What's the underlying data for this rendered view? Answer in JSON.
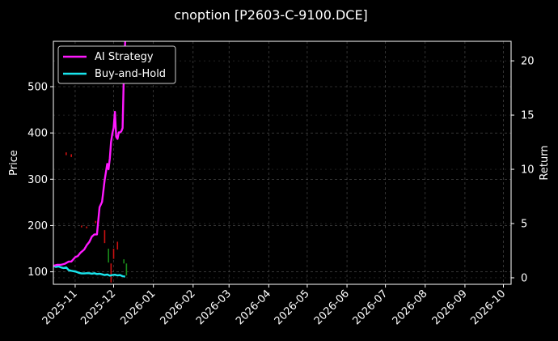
{
  "chart_data": {
    "type": "line",
    "title": "cnoption [P2603-C-9100.DCE]",
    "xlabel": "",
    "ylabel": "Price",
    "y2label": "Return",
    "x_ticks": [
      "2025-11",
      "2025-12",
      "2026-01",
      "2026-02",
      "2026-03",
      "2026-04",
      "2026-05",
      "2026-06",
      "2026-07",
      "2026-08",
      "2026-09",
      "2026-10"
    ],
    "xlim": [
      "2025-10-15",
      "2026-10-07"
    ],
    "ylim": [
      73,
      598
    ],
    "y_ticks": [
      100,
      200,
      300,
      400,
      500
    ],
    "y2lim": [
      -0.6,
      21.8
    ],
    "y2_ticks": [
      0,
      5,
      10,
      15,
      20
    ],
    "grid": true,
    "legend_position": "top-left",
    "series": [
      {
        "name": "AI Strategy",
        "axis": "right",
        "color": "#ff19ff",
        "x": [
          "2025-10-15",
          "2025-10-18",
          "2025-10-21",
          "2025-10-24",
          "2025-10-27",
          "2025-10-29",
          "2025-11-01",
          "2025-11-03",
          "2025-11-05",
          "2025-11-08",
          "2025-11-10",
          "2025-11-12",
          "2025-11-14",
          "2025-11-16",
          "2025-11-18",
          "2025-11-20",
          "2025-11-22",
          "2025-11-24",
          "2025-11-26",
          "2025-11-27",
          "2025-11-28",
          "2025-11-29",
          "2025-11-30",
          "2025-12-01",
          "2025-12-02",
          "2025-12-03",
          "2025-12-04",
          "2025-12-05",
          "2025-12-06",
          "2025-12-07",
          "2025-12-08",
          "2025-12-09",
          "2025-12-10"
        ],
        "y": [
          1.1,
          1.2,
          1.2,
          1.3,
          1.5,
          1.5,
          1.9,
          2.0,
          2.3,
          2.6,
          3.0,
          3.3,
          3.8,
          4.0,
          4.0,
          6.5,
          7.0,
          9.0,
          10.5,
          10.0,
          11.0,
          12.5,
          13.3,
          13.8,
          15.3,
          13.0,
          12.8,
          13.4,
          13.4,
          13.5,
          13.8,
          19.0,
          21.8
        ]
      },
      {
        "name": "Buy-and-Hold",
        "axis": "right",
        "color": "#19e5ed",
        "x": [
          "2025-10-15",
          "2025-10-17",
          "2025-10-19",
          "2025-10-21",
          "2025-10-23",
          "2025-10-25",
          "2025-10-27",
          "2025-10-29",
          "2025-10-31",
          "2025-11-02",
          "2025-11-04",
          "2025-11-06",
          "2025-11-08",
          "2025-11-10",
          "2025-11-12",
          "2025-11-14",
          "2025-11-16",
          "2025-11-18",
          "2025-11-20",
          "2025-11-22",
          "2025-11-24",
          "2025-11-26",
          "2025-11-28",
          "2025-11-30",
          "2025-12-02",
          "2025-12-04",
          "2025-12-06",
          "2025-12-08",
          "2025-12-10"
        ],
        "y": [
          1.1,
          1.0,
          1.05,
          0.95,
          0.9,
          0.95,
          0.7,
          0.65,
          0.6,
          0.55,
          0.45,
          0.4,
          0.4,
          0.42,
          0.42,
          0.38,
          0.42,
          0.35,
          0.38,
          0.32,
          0.25,
          0.3,
          0.2,
          0.25,
          0.28,
          0.22,
          0.25,
          0.15,
          0.1
        ]
      }
    ],
    "candles": [
      {
        "x": "2025-10-25",
        "low": 352,
        "high": 358,
        "up": false
      },
      {
        "x": "2025-10-29",
        "low": 348,
        "high": 354,
        "up": false
      },
      {
        "x": "2025-11-06",
        "low": 196,
        "high": 200,
        "up": false
      },
      {
        "x": "2025-11-10",
        "low": 194,
        "high": 198,
        "up": false
      },
      {
        "x": "2025-11-17",
        "low": 205,
        "high": 210,
        "up": false
      },
      {
        "x": "2025-11-24",
        "low": 162,
        "high": 190,
        "up": false
      },
      {
        "x": "2025-11-27",
        "low": 120,
        "high": 150,
        "up": true
      },
      {
        "x": "2025-11-29",
        "low": 77,
        "high": 118,
        "up": false
      },
      {
        "x": "2025-12-01",
        "low": 128,
        "high": 150,
        "up": false
      },
      {
        "x": "2025-12-04",
        "low": 148,
        "high": 165,
        "up": false
      },
      {
        "x": "2025-12-09",
        "low": 118,
        "high": 127,
        "up": true
      },
      {
        "x": "2025-12-11",
        "low": 92,
        "high": 118,
        "up": true
      }
    ],
    "up_color": "#1a8c1a",
    "down_color": "#cc1111"
  }
}
